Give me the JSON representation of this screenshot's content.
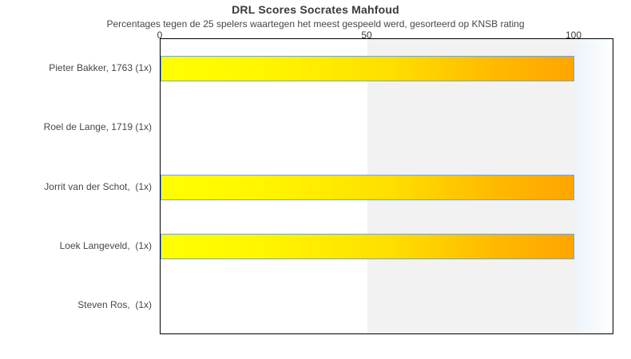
{
  "chart_data": {
    "type": "bar",
    "orientation": "horizontal",
    "title": "DRL Scores Socrates Mahfoud",
    "subtitle": "Percentages tegen de 25 spelers waartegen het meest gespeeld werd, gesorteerd op KNSB rating",
    "categories": [
      "Pieter Bakker, 1763 (1x)",
      "Roel de Lange, 1719 (1x)",
      "Jorrit van der Schot,  (1x)",
      "Loek Langeveld,  (1x)",
      "Steven Ros,  (1x)"
    ],
    "values": [
      100,
      0,
      100,
      100,
      0
    ],
    "xlabel": "",
    "ylabel": "",
    "xlim": [
      0,
      100
    ],
    "x_ticks": [
      "0",
      "50",
      "100"
    ],
    "x_tick_values": [
      0,
      50,
      100
    ],
    "grid": false,
    "legend": "none",
    "colors": {
      "bar_gradient_start": "#FFFF00",
      "bar_gradient_end": "#FFA500",
      "bar_border": "#6CA6D5",
      "band_shade_50_100": "#F2F2F2",
      "overflow_gradient_start": "#ECF4FA",
      "overflow_gradient_end": "#FFFFFF",
      "plot_border": "#000000",
      "text": "#474747"
    },
    "band_shading": {
      "from": 50,
      "to": 100
    }
  }
}
